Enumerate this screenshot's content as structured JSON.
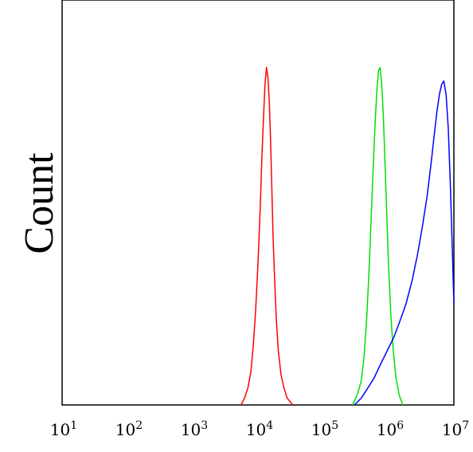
{
  "chart_data": {
    "type": "line",
    "title": "",
    "xlabel": "",
    "ylabel": "Count",
    "x_scale": "log",
    "xlim": [
      10,
      10000000
    ],
    "ylim": [
      0,
      1.2
    ],
    "x_ticks": [
      {
        "value": 10,
        "base": "10",
        "exp": "1"
      },
      {
        "value": 100,
        "base": "10",
        "exp": "2"
      },
      {
        "value": 1000,
        "base": "10",
        "exp": "3"
      },
      {
        "value": 10000,
        "base": "10",
        "exp": "4"
      },
      {
        "value": 100000,
        "base": "10",
        "exp": "5"
      },
      {
        "value": 1000000,
        "base": "10",
        "exp": "6"
      },
      {
        "value": 10000000,
        "base": "10",
        "exp": "7"
      }
    ],
    "grid": false,
    "series": [
      {
        "color": "#ff0000",
        "x": [
          5500,
          6200,
          7000,
          7800,
          8500,
          9200,
          10000,
          10800,
          11500,
          12200,
          12800,
          13500,
          14200,
          14900,
          15600,
          16300,
          17000,
          18000,
          19000,
          20500,
          22500,
          25000,
          28000,
          31000,
          34000
        ],
        "y": [
          0,
          0.02,
          0.05,
          0.1,
          0.18,
          0.28,
          0.42,
          0.58,
          0.74,
          0.86,
          0.95,
          1.0,
          0.97,
          0.9,
          0.78,
          0.64,
          0.5,
          0.37,
          0.26,
          0.16,
          0.09,
          0.05,
          0.02,
          0.01,
          0
        ]
      },
      {
        "color": "#00e000",
        "x": [
          280000,
          330000,
          380000,
          420000,
          460000,
          500000,
          540000,
          580000,
          620000,
          660000,
          700000,
          740000,
          780000,
          830000,
          880000,
          940000,
          1000000,
          1080000,
          1180000,
          1300000,
          1450000,
          1650000
        ],
        "y": [
          0,
          0.03,
          0.07,
          0.14,
          0.25,
          0.39,
          0.55,
          0.7,
          0.83,
          0.93,
          0.99,
          1.0,
          0.96,
          0.86,
          0.72,
          0.56,
          0.41,
          0.27,
          0.16,
          0.08,
          0.03,
          0
        ]
      },
      {
        "color": "#0000ff",
        "x": [
          300000,
          380000,
          480000,
          600000,
          750000,
          950000,
          1200000,
          1500000,
          1850000,
          2300000,
          2800000,
          3300000,
          3900000,
          4500000,
          5000000,
          5500000,
          6000000,
          6500000,
          7000000,
          7600000,
          8200000,
          8800000,
          9400000,
          10000000
        ],
        "y": [
          0,
          0.02,
          0.05,
          0.08,
          0.12,
          0.16,
          0.2,
          0.25,
          0.3,
          0.37,
          0.45,
          0.53,
          0.62,
          0.72,
          0.8,
          0.87,
          0.92,
          0.95,
          0.96,
          0.92,
          0.82,
          0.66,
          0.48,
          0.3
        ]
      }
    ]
  }
}
